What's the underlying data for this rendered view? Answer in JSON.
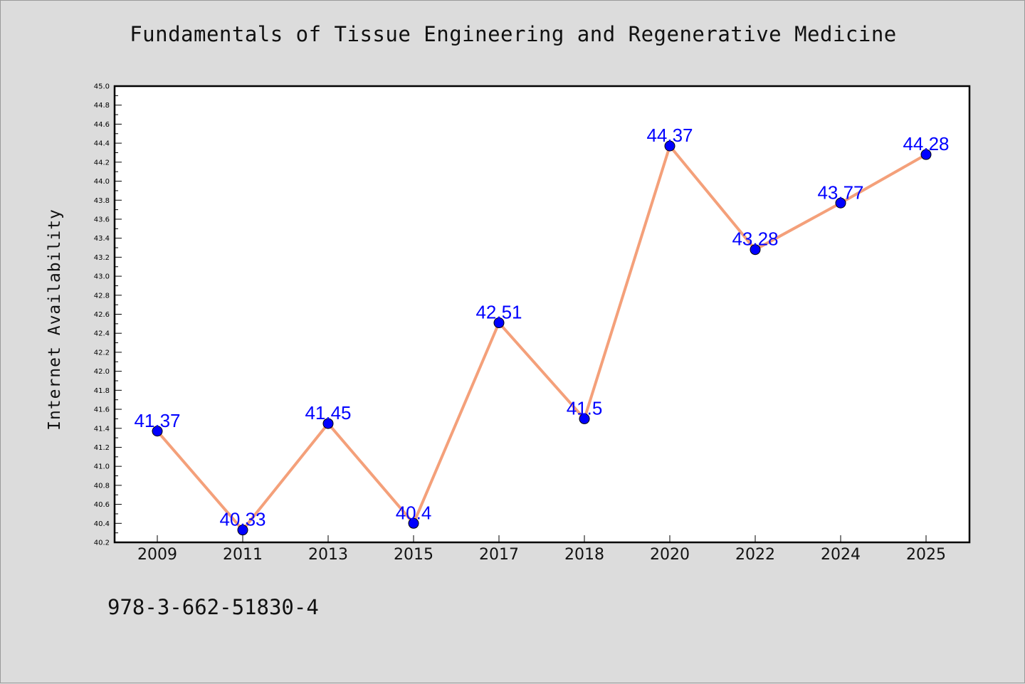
{
  "chart_data": {
    "type": "line",
    "title": "Fundamentals of Tissue Engineering and Regenerative Medicine",
    "xlabel": "",
    "ylabel": "Internet Availability",
    "categories": [
      "2009",
      "2011",
      "2013",
      "2015",
      "2017",
      "2018",
      "2020",
      "2022",
      "2024",
      "2025"
    ],
    "series": [
      {
        "values": [
          41.37,
          40.33,
          41.45,
          40.4,
          42.51,
          41.5,
          44.37,
          43.28,
          43.77,
          44.28
        ],
        "labels": [
          "41.37",
          "40.33",
          "41.45",
          "40.4",
          "42.51",
          "41.5",
          "44.37",
          "43.28",
          "43.77",
          "44.28"
        ]
      }
    ],
    "ylim": [
      40.2,
      45.0
    ],
    "y_ticks": [
      "40.2",
      "40.4",
      "40.6",
      "40.8",
      "41.0",
      "41.2",
      "41.4",
      "41.6",
      "41.8",
      "42.0",
      "42.2",
      "42.4",
      "42.6",
      "42.8",
      "43.0",
      "43.2",
      "43.4",
      "43.6",
      "43.8",
      "44.0",
      "44.2",
      "44.4",
      "44.6",
      "44.8",
      "45.0"
    ],
    "grid": false,
    "legend": "none",
    "line_color": "#f4a07a",
    "marker_color": "#0000ff",
    "label_color": "#0000ff"
  },
  "footer_text": "978-3-662-51830-4"
}
